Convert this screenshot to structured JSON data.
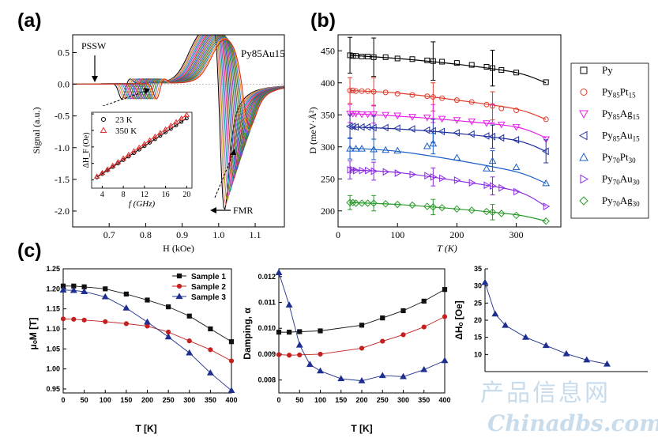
{
  "panel_labels": {
    "a": "(a)",
    "b": "(b)",
    "c": "(c)"
  },
  "watermark": {
    "cn": "产品信息网",
    "en": "Chinadbs.com"
  },
  "chart_data": [
    {
      "id": "a",
      "type": "line",
      "title": "Py85Au15",
      "xlabel": "H (kOe)",
      "ylabel": "Signal (a.u.)",
      "xlim": [
        0.6,
        1.18
      ],
      "ylim": [
        -2.25,
        0.78
      ],
      "xticks": [
        "0.7",
        "0.8",
        "0.9",
        "1.0",
        "1.1"
      ],
      "yticks": [
        "0.5",
        "0.0",
        "-0.5",
        "-1.0",
        "-1.5",
        "-2.0"
      ],
      "annotations": [
        "PSSW",
        "FMR"
      ],
      "series_count": 20,
      "series_colors": [
        "#000000",
        "#f08080",
        "#9a9a00",
        "#cc66cc",
        "#00a0a0",
        "#6a5acd",
        "#ff3399",
        "#8b4513",
        "#2e8b57",
        "#3050e0",
        "#b03060",
        "#5c8a00",
        "#9932cc",
        "#008b8b",
        "#556b2f",
        "#a0522d",
        "#228b22",
        "#4169e1",
        "#ff8c00",
        "#d22020"
      ],
      "fmr_field_range": [
        1.005,
        1.07
      ],
      "fmr_depth_range": [
        -2.05,
        -0.72
      ],
      "pssw_field_range": [
        0.735,
        0.83
      ],
      "inset": {
        "type": "scatter",
        "xlabel": "f (GHz)",
        "ylabel": "ΔH_F (Oe)",
        "xlim": [
          2,
          21
        ],
        "ylim": [
          15,
          61
        ],
        "xticks": [
          "4",
          "8",
          "12",
          "16",
          "20"
        ],
        "yticks": [
          "20",
          "30",
          "40",
          "50",
          "60"
        ],
        "series": [
          {
            "name": "23 K",
            "marker": "circle",
            "color": "#000000",
            "x": [
              3,
              4,
              5,
              6,
              7,
              8,
              9,
              10,
              11,
              12,
              13,
              14,
              15,
              16,
              17,
              18,
              19,
              20
            ],
            "y": [
              21.6,
              23.7,
              25.8,
              27.9,
              30.0,
              32.1,
              34.2,
              36.3,
              38.4,
              40.5,
              42.6,
              44.7,
              46.8,
              48.9,
              51.0,
              53.1,
              55.2,
              57.3
            ]
          },
          {
            "name": "350 K",
            "marker": "triangle",
            "color": "#e03030",
            "x": [
              3,
              4,
              5,
              6,
              7,
              8,
              9,
              10,
              11,
              12,
              13,
              14,
              15,
              16,
              17,
              18,
              19,
              20
            ],
            "y": [
              22.0,
              24.2,
              26.4,
              28.6,
              30.8,
              33.0,
              35.2,
              37.4,
              39.6,
              41.8,
              44.0,
              46.2,
              48.4,
              50.6,
              52.8,
              55.0,
              57.2,
              59.4
            ]
          }
        ]
      }
    },
    {
      "id": "b",
      "type": "line",
      "xlabel": "T (K)",
      "ylabel": "D (meV·Å²)",
      "xlim": [
        0,
        375
      ],
      "ylim": [
        175,
        475
      ],
      "xticks": [
        "0",
        "100",
        "200",
        "300"
      ],
      "yticks": [
        "450",
        "400",
        "350",
        "300",
        "250",
        "200"
      ],
      "legend_position": "right-outside",
      "series": [
        {
          "name": "Py",
          "label_base": "Py",
          "label_sub": "",
          "marker": "square",
          "color": "#000000",
          "x": [
            20,
            25,
            30,
            40,
            50,
            60,
            80,
            100,
            125,
            150,
            160,
            175,
            200,
            225,
            250,
            260,
            275,
            300,
            350
          ],
          "y": [
            443,
            442,
            442,
            441,
            441,
            440,
            440,
            438,
            437,
            435,
            434,
            433,
            431,
            428,
            425,
            423,
            420,
            416,
            401
          ],
          "fit": [
            [
              20,
              443
            ],
            [
              100,
              438
            ],
            [
              200,
              429
            ],
            [
              300,
              416
            ],
            [
              350,
              400
            ]
          ],
          "err": [
            [
              20,
              28
            ],
            [
              60,
              30
            ],
            [
              160,
              30
            ],
            [
              260,
              28
            ]
          ]
        },
        {
          "name": "Py85Pt15",
          "label_base": "Py",
          "label_sub": "85",
          "label_rest": "Pt",
          "label_sub2": "15",
          "marker": "circle",
          "color": "#e03a2a",
          "x": [
            20,
            25,
            30,
            40,
            50,
            60,
            80,
            100,
            125,
            150,
            160,
            175,
            200,
            225,
            250,
            260,
            275,
            300,
            350
          ],
          "y": [
            388,
            388,
            387,
            387,
            387,
            386,
            385,
            383,
            381,
            379,
            378,
            376,
            373,
            370,
            366,
            364,
            360,
            357,
            343
          ],
          "fit": [
            [
              20,
              388
            ],
            [
              100,
              384
            ],
            [
              200,
              373
            ],
            [
              300,
              359
            ],
            [
              350,
              343
            ]
          ],
          "err": [
            [
              20,
              20
            ],
            [
              60,
              22
            ],
            [
              160,
              22
            ],
            [
              260,
              22
            ]
          ]
        },
        {
          "name": "Py85Ag15",
          "label_base": "Py",
          "label_sub": "85",
          "label_rest": "Ag",
          "label_sub2": "15",
          "marker": "triangle-down",
          "color": "#e61ee6",
          "x": [
            20,
            25,
            30,
            40,
            50,
            60,
            80,
            100,
            125,
            150,
            175,
            200,
            225,
            250,
            275,
            300,
            350
          ],
          "y": [
            352,
            352,
            352,
            351,
            351,
            351,
            350,
            349,
            347,
            346,
            344,
            342,
            340,
            337,
            335,
            331,
            312
          ],
          "fit": [
            [
              20,
              352
            ],
            [
              100,
              348
            ],
            [
              200,
              341
            ],
            [
              300,
              331
            ],
            [
              350,
              314
            ]
          ],
          "err": [
            [
              20,
              14
            ],
            [
              60,
              14
            ],
            [
              160,
              14
            ],
            [
              260,
              14
            ]
          ]
        },
        {
          "name": "Py85Au15",
          "label_base": "Py",
          "label_sub": "85",
          "label_rest": "Au",
          "label_sub2": "15",
          "marker": "triangle-left",
          "color": "#2030a0",
          "x": [
            20,
            25,
            30,
            40,
            50,
            60,
            80,
            100,
            125,
            150,
            160,
            175,
            200,
            225,
            250,
            260,
            275,
            300,
            350
          ],
          "y": [
            332,
            332,
            331,
            331,
            331,
            330,
            330,
            329,
            328,
            326,
            325,
            324,
            322,
            320,
            317,
            316,
            314,
            311,
            293
          ],
          "fit": [
            [
              20,
              331
            ],
            [
              100,
              328
            ],
            [
              200,
              321
            ],
            [
              300,
              310
            ],
            [
              350,
              293
            ]
          ],
          "err": [
            [
              20,
              18
            ],
            [
              60,
              18
            ],
            [
              160,
              18
            ],
            [
              260,
              18
            ],
            [
              350,
              18
            ]
          ]
        },
        {
          "name": "Py70Pt30",
          "label_base": "Py",
          "label_sub": "70",
          "label_rest": "Pt",
          "label_sub2": "30",
          "marker": "triangle",
          "color": "#1a5fc8",
          "x": [
            20,
            30,
            40,
            60,
            80,
            100,
            150,
            160,
            200,
            250,
            260,
            300,
            350
          ],
          "y": [
            297,
            297,
            297,
            296,
            295,
            294,
            301,
            305,
            283,
            266,
            278,
            268,
            243
          ],
          "fit": [
            [
              20,
              298
            ],
            [
              100,
              293
            ],
            [
              200,
              279
            ],
            [
              300,
              261
            ],
            [
              350,
              243
            ]
          ],
          "err": [
            [
              20,
              16
            ],
            [
              60,
              16
            ],
            [
              160,
              16
            ],
            [
              260,
              16
            ]
          ]
        },
        {
          "name": "Py70Au30",
          "label_base": "Py",
          "label_sub": "70",
          "label_rest": "Au",
          "label_sub2": "30",
          "marker": "triangle-right",
          "color": "#8a2be2",
          "x": [
            20,
            25,
            30,
            40,
            50,
            60,
            80,
            100,
            125,
            150,
            160,
            175,
            200,
            225,
            250,
            260,
            275,
            300,
            350
          ],
          "y": [
            264,
            264,
            263,
            263,
            263,
            262,
            261,
            259,
            257,
            255,
            253,
            251,
            248,
            244,
            240,
            239,
            236,
            230,
            207
          ],
          "fit": [
            [
              20,
              264
            ],
            [
              100,
              260
            ],
            [
              200,
              247
            ],
            [
              300,
              231
            ],
            [
              350,
              207
            ]
          ],
          "err": [
            [
              20,
              14
            ],
            [
              60,
              14
            ],
            [
              160,
              14
            ],
            [
              260,
              14
            ]
          ]
        },
        {
          "name": "Py70Ag30",
          "label_base": "Py",
          "label_sub": "70",
          "label_rest": "Ag",
          "label_sub2": "30",
          "marker": "diamond",
          "color": "#2a9a2a",
          "x": [
            20,
            25,
            30,
            40,
            50,
            60,
            80,
            100,
            125,
            150,
            160,
            175,
            200,
            225,
            250,
            260,
            275,
            300,
            350
          ],
          "y": [
            213,
            213,
            212,
            212,
            212,
            212,
            211,
            210,
            209,
            207,
            206,
            205,
            203,
            201,
            199,
            198,
            196,
            193,
            184
          ],
          "fit": [
            [
              20,
              213
            ],
            [
              100,
              210
            ],
            [
              200,
              203
            ],
            [
              300,
              194
            ],
            [
              350,
              184
            ]
          ],
          "err": [
            [
              20,
              11
            ],
            [
              60,
              12
            ],
            [
              160,
              12
            ],
            [
              260,
              12
            ]
          ]
        }
      ]
    },
    {
      "id": "c1",
      "type": "line",
      "xlabel": "T [K]",
      "ylabel": "μₒM [T]",
      "xlim": [
        0,
        400
      ],
      "ylim": [
        0.94,
        1.25
      ],
      "xticks": [
        "0",
        "50",
        "100",
        "150",
        "200",
        "250",
        "300",
        "350",
        "400"
      ],
      "yticks": [
        "1.25",
        "1.20",
        "1.15",
        "1.10",
        "1.05",
        "1.00",
        "0.95"
      ],
      "legend_position": "top-right",
      "series": [
        {
          "name": "Sample 1",
          "marker": "square",
          "color": "#111111",
          "x": [
            0,
            25,
            50,
            100,
            150,
            200,
            250,
            300,
            350,
            400
          ],
          "y": [
            1.207,
            1.207,
            1.205,
            1.2,
            1.187,
            1.172,
            1.155,
            1.132,
            1.1,
            1.068
          ]
        },
        {
          "name": "Sample 2",
          "marker": "circle",
          "color": "#c42020",
          "x": [
            0,
            25,
            50,
            100,
            150,
            200,
            250,
            300,
            350,
            400
          ],
          "y": [
            1.125,
            1.124,
            1.122,
            1.118,
            1.113,
            1.107,
            1.092,
            1.07,
            1.048,
            1.02
          ]
        },
        {
          "name": "Sample 3",
          "marker": "triangle",
          "color": "#1f2f8f",
          "x": [
            0,
            25,
            50,
            100,
            150,
            200,
            250,
            300,
            350,
            400
          ],
          "y": [
            1.197,
            1.196,
            1.193,
            1.18,
            1.152,
            1.117,
            1.08,
            1.04,
            0.99,
            0.946
          ]
        }
      ]
    },
    {
      "id": "c2",
      "type": "line",
      "xlabel": "T [K]",
      "ylabel": "Damping, α",
      "xlim": [
        0,
        400
      ],
      "ylim": [
        0.0075,
        0.0123
      ],
      "xticks": [
        "0",
        "50",
        "100",
        "150",
        "200",
        "250",
        "300",
        "350",
        "400"
      ],
      "yticks": [
        "0.012",
        "0.011",
        "0.010",
        "0.009",
        "0.008"
      ],
      "series": [
        {
          "name": "Sample 1",
          "marker": "square",
          "color": "#111111",
          "x": [
            0,
            25,
            50,
            100,
            200,
            250,
            300,
            350,
            400
          ],
          "y": [
            0.00985,
            0.00985,
            0.00987,
            0.0099,
            0.01012,
            0.0104,
            0.01068,
            0.01105,
            0.0115
          ]
        },
        {
          "name": "Sample 2",
          "marker": "circle",
          "color": "#c42020",
          "x": [
            0,
            25,
            50,
            100,
            200,
            250,
            300,
            350,
            400
          ],
          "y": [
            0.00898,
            0.00896,
            0.00897,
            0.009,
            0.00923,
            0.0095,
            0.00975,
            0.01005,
            0.01045
          ]
        },
        {
          "name": "Sample 3",
          "marker": "triangle",
          "color": "#1f2f8f",
          "x": [
            0,
            25,
            50,
            75,
            100,
            150,
            200,
            250,
            300,
            350,
            400
          ],
          "y": [
            0.01215,
            0.0109,
            0.00935,
            0.0086,
            0.00835,
            0.00805,
            0.00797,
            0.00817,
            0.00813,
            0.0084,
            0.00875
          ]
        }
      ]
    },
    {
      "id": "c3",
      "type": "line",
      "xlabel": "",
      "ylabel": "ΔHₒ [Oe]",
      "xlim": [
        0,
        400
      ],
      "ylim": [
        5,
        35
      ],
      "yticks": [
        "35",
        "30",
        "25",
        "20",
        "15",
        "10"
      ],
      "series": [
        {
          "name": "Sample 3",
          "marker": "triangle",
          "color": "#1f2f8f",
          "x": [
            0,
            25,
            50,
            100,
            150,
            200,
            250,
            300
          ],
          "y": [
            31.0,
            21.8,
            18.5,
            15.0,
            12.6,
            10.2,
            8.4,
            7.2
          ]
        }
      ]
    }
  ]
}
